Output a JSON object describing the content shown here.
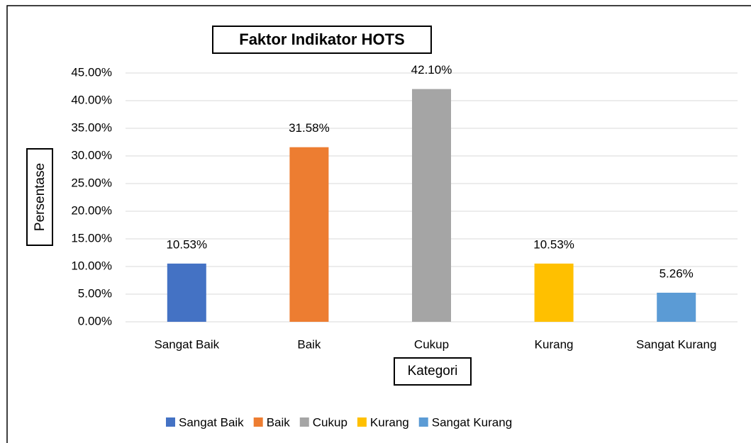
{
  "chart_data": {
    "type": "bar",
    "title": "Faktor Indikator HOTS",
    "x_label": "Kategori",
    "y_label": "Persentase",
    "categories": [
      "Sangat Baik",
      "Baik",
      "Cukup",
      "Kurang",
      "Sangat Kurang"
    ],
    "values": [
      10.53,
      31.58,
      42.1,
      10.53,
      5.26
    ],
    "value_labels": [
      "10.53%",
      "31.58%",
      "42.10%",
      "10.53%",
      "5.26%"
    ],
    "colors": [
      "#4472c4",
      "#ed7d31",
      "#a5a5a5",
      "#ffc000",
      "#5b9bd5"
    ],
    "ylim": [
      0,
      45
    ],
    "yticks": [
      {
        "value": 0,
        "label": "0.00%"
      },
      {
        "value": 5,
        "label": "5.00%"
      },
      {
        "value": 10,
        "label": "10.00%"
      },
      {
        "value": 15,
        "label": "15.00%"
      },
      {
        "value": 20,
        "label": "20.00%"
      },
      {
        "value": 25,
        "label": "25.00%"
      },
      {
        "value": 30,
        "label": "30.00%"
      },
      {
        "value": 35,
        "label": "35.00%"
      },
      {
        "value": 40,
        "label": "40.00%"
      },
      {
        "value": 45,
        "label": "45.00%"
      }
    ],
    "grid": true,
    "legend": "bottom"
  }
}
